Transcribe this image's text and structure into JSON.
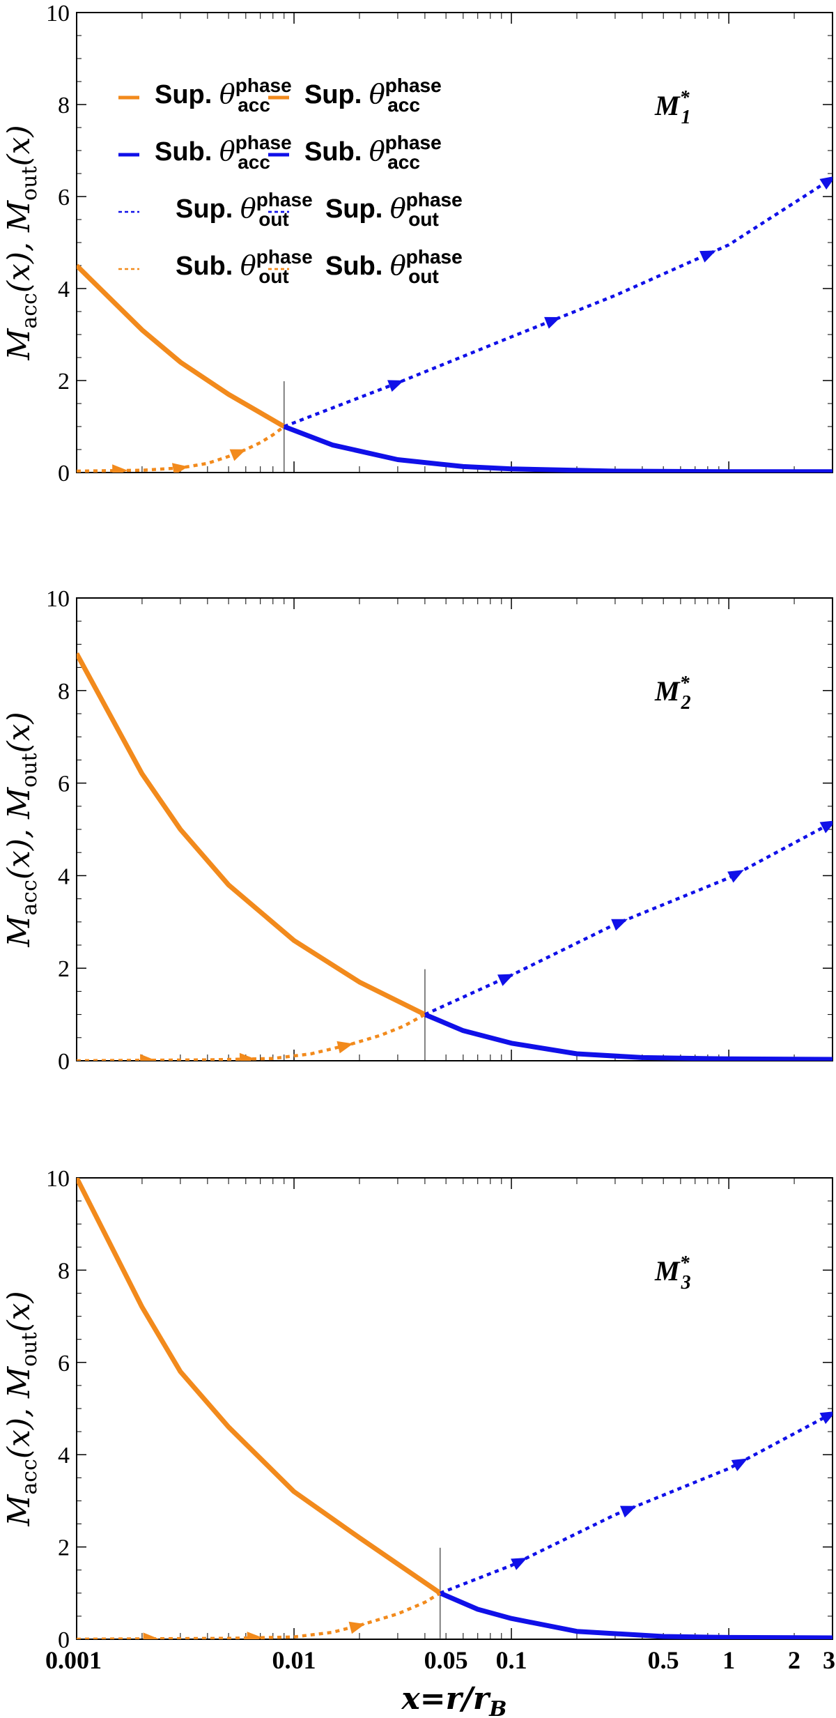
{
  "figure": {
    "xlabel": "x=r/r_B",
    "xlabel_parts": {
      "main": "x=r/r",
      "sub": "B"
    },
    "x_tick_labels": [
      "0.001",
      "0.01",
      "0.05",
      "0.1",
      "0.5",
      "1",
      "2",
      "3"
    ],
    "y_tick_labels": [
      "0",
      "2",
      "4",
      "6",
      "8",
      "10"
    ]
  },
  "legend_entries": [
    {
      "label": "Sup.",
      "symbol": "θ",
      "sup": "phase",
      "sub": "acc",
      "color": "#F28A1C",
      "style": "solid"
    },
    {
      "label": "Sub.",
      "symbol": "θ",
      "sup": "phase",
      "sub": "acc",
      "color": "#1010E8",
      "style": "solid"
    },
    {
      "label": "Sup.",
      "symbol": "θ",
      "sup": "phase",
      "sub": "out",
      "color": "#1010E8",
      "style": "dashed"
    },
    {
      "label": "Sub.",
      "symbol": "θ",
      "sup": "phase",
      "sub": "out",
      "color": "#F28A1C",
      "style": "dashed"
    }
  ],
  "colors": {
    "orange": "#F28A1C",
    "blue": "#1010E8",
    "sonic_line": "#808080"
  },
  "chart_data": [
    {
      "type": "line",
      "title": "M1*",
      "panel_label": {
        "main": "M",
        "sub": "1",
        "sup": "*"
      },
      "xscale": "log",
      "xlim": [
        0.001,
        3
      ],
      "ylim": [
        0,
        10
      ],
      "ylabel": "M_acc(x), M_out(x)",
      "ylabel_parts": {
        "a": "M",
        "a_sub": "acc",
        "b": "(x), M",
        "b_sub": "out",
        "c": "(x)"
      },
      "y_ticks": [
        0,
        2,
        4,
        6,
        8,
        10
      ],
      "show_x_tick_labels": false,
      "legend_position": "upper-left",
      "sonic_point": {
        "x": 0.009,
        "y": 1
      },
      "series": [
        {
          "name": "Sup. θ_acc^phase",
          "color": "#F28A1C",
          "style": "solid",
          "x": [
            0.001,
            0.002,
            0.003,
            0.005,
            0.007,
            0.009
          ],
          "y": [
            4.5,
            3.1,
            2.4,
            1.7,
            1.3,
            1.0
          ]
        },
        {
          "name": "Sub. θ_acc^phase",
          "color": "#1010E8",
          "style": "solid",
          "x": [
            0.009,
            0.015,
            0.03,
            0.06,
            0.1,
            0.3,
            1,
            3
          ],
          "y": [
            1.0,
            0.6,
            0.28,
            0.13,
            0.08,
            0.03,
            0.02,
            0.02
          ]
        },
        {
          "name": "Sup. θ_out^phase",
          "color": "#1010E8",
          "style": "dashed",
          "x": [
            0.009,
            0.03,
            0.1,
            0.3,
            1,
            3
          ],
          "y": [
            1.0,
            1.95,
            2.95,
            3.85,
            4.95,
            6.4
          ]
        },
        {
          "name": "Sub. θ_out^phase",
          "color": "#F28A1C",
          "style": "dashed",
          "x": [
            0.001,
            0.002,
            0.003,
            0.004,
            0.005,
            0.006,
            0.007,
            0.008,
            0.009
          ],
          "y": [
            0.03,
            0.05,
            0.1,
            0.2,
            0.35,
            0.5,
            0.65,
            0.82,
            1.0
          ]
        }
      ]
    },
    {
      "type": "line",
      "title": "M2*",
      "panel_label": {
        "main": "M",
        "sub": "2",
        "sup": "*"
      },
      "xscale": "log",
      "xlim": [
        0.001,
        3
      ],
      "ylim": [
        0,
        10
      ],
      "ylabel": "M_acc(x), M_out(x)",
      "ylabel_parts": {
        "a": "M",
        "a_sub": "acc",
        "b": "(x), M",
        "b_sub": "out",
        "c": "(x)"
      },
      "y_ticks": [
        0,
        2,
        4,
        6,
        8,
        10
      ],
      "show_x_tick_labels": false,
      "legend_position": "upper-center",
      "sonic_point": {
        "x": 0.04,
        "y": 1
      },
      "series": [
        {
          "name": "Sup. θ_acc^phase",
          "color": "#F28A1C",
          "style": "solid",
          "x": [
            0.001,
            0.002,
            0.003,
            0.005,
            0.01,
            0.02,
            0.04
          ],
          "y": [
            8.8,
            6.2,
            5.0,
            3.8,
            2.6,
            1.7,
            1.0
          ]
        },
        {
          "name": "Sub. θ_acc^phase",
          "color": "#1010E8",
          "style": "solid",
          "x": [
            0.04,
            0.06,
            0.1,
            0.2,
            0.4,
            1,
            3
          ],
          "y": [
            1.0,
            0.65,
            0.38,
            0.15,
            0.07,
            0.04,
            0.03
          ]
        },
        {
          "name": "Sup. θ_out^phase",
          "color": "#1010E8",
          "style": "dashed",
          "x": [
            0.04,
            0.1,
            0.3,
            1,
            3
          ],
          "y": [
            1.0,
            1.85,
            2.95,
            3.95,
            5.15
          ]
        },
        {
          "name": "Sub. θ_out^phase",
          "color": "#F28A1C",
          "style": "dashed",
          "x": [
            0.001,
            0.004,
            0.008,
            0.012,
            0.018,
            0.025,
            0.032,
            0.04
          ],
          "y": [
            0.0,
            0.02,
            0.05,
            0.15,
            0.35,
            0.55,
            0.75,
            1.0
          ]
        }
      ]
    },
    {
      "type": "line",
      "title": "M3*",
      "panel_label": {
        "main": "M",
        "sub": "3",
        "sup": "*"
      },
      "xscale": "log",
      "xlim": [
        0.001,
        3
      ],
      "ylim": [
        0,
        10
      ],
      "ylabel": "M_acc(x), M_out(x)",
      "ylabel_parts": {
        "a": "M",
        "a_sub": "acc",
        "b": "(x), M",
        "b_sub": "out",
        "c": "(x)"
      },
      "y_ticks": [
        0,
        2,
        4,
        6,
        8,
        10
      ],
      "show_x_tick_labels": true,
      "legend_position": "upper-center",
      "sonic_point": {
        "x": 0.047,
        "y": 1
      },
      "series": [
        {
          "name": "Sup. θ_acc^phase",
          "color": "#F28A1C",
          "style": "solid",
          "x": [
            0.001,
            0.002,
            0.003,
            0.005,
            0.01,
            0.02,
            0.047
          ],
          "y": [
            10.0,
            7.2,
            5.8,
            4.6,
            3.2,
            2.2,
            1.0
          ]
        },
        {
          "name": "Sub. θ_acc^phase",
          "color": "#1010E8",
          "style": "solid",
          "x": [
            0.047,
            0.07,
            0.1,
            0.2,
            0.5,
            1,
            3
          ],
          "y": [
            1.0,
            0.65,
            0.45,
            0.17,
            0.06,
            0.04,
            0.03
          ]
        },
        {
          "name": "Sup. θ_out^phase",
          "color": "#1010E8",
          "style": "dashed",
          "x": [
            0.047,
            0.1,
            0.3,
            1,
            3
          ],
          "y": [
            1.0,
            1.6,
            2.7,
            3.7,
            4.9
          ]
        },
        {
          "name": "Sub. θ_out^phase",
          "color": "#F28A1C",
          "style": "dashed",
          "x": [
            0.001,
            0.005,
            0.01,
            0.015,
            0.02,
            0.03,
            0.04,
            0.047
          ],
          "y": [
            0.0,
            0.02,
            0.05,
            0.15,
            0.3,
            0.55,
            0.8,
            1.0
          ]
        }
      ]
    }
  ]
}
